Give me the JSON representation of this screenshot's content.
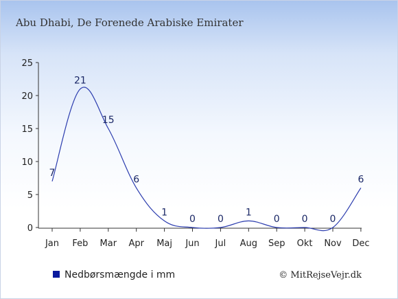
{
  "header": {
    "title": "Abu Dhabi, De Forenede Arabiske Emirater"
  },
  "legend": {
    "label": "Nedbørsmængde i mm",
    "color": "#0a1a9e"
  },
  "footer": {
    "credit": "© MitRejseVejr.dk"
  },
  "chart_data": {
    "type": "line",
    "title": "Abu Dhabi, De Forenede Arabiske Emirater",
    "xlabel": "",
    "ylabel": "",
    "categories": [
      "Jan",
      "Feb",
      "Mar",
      "Apr",
      "Maj",
      "Jun",
      "Jul",
      "Aug",
      "Sep",
      "Okt",
      "Nov",
      "Dec"
    ],
    "series": [
      {
        "name": "Nedbørsmængde i mm",
        "values": [
          7,
          21,
          15,
          6,
          1,
          0,
          0,
          1,
          0,
          0,
          0,
          6
        ],
        "color": "#2b3cae"
      }
    ],
    "ylim": [
      0,
      25
    ],
    "yticks": [
      0,
      5,
      10,
      15,
      20,
      25
    ],
    "grid": false,
    "legend_position": "bottom-left"
  }
}
